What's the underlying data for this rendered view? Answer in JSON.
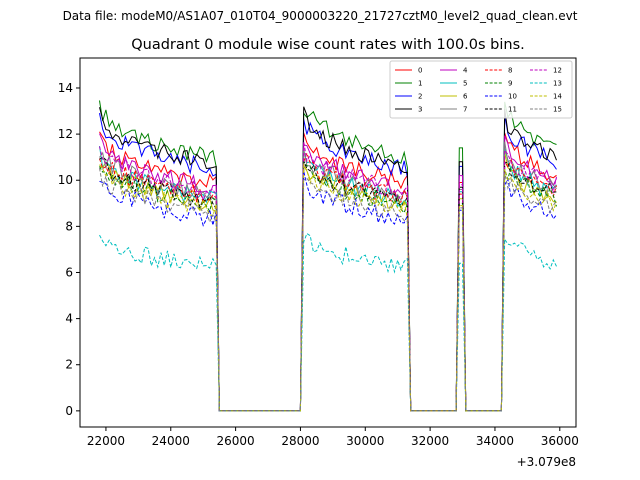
{
  "figure": {
    "suptitle": "Data file: modeM0/AS1A07_010T04_9000003220_21727cztM0_level2_quad_clean.evt"
  },
  "chart_data": {
    "type": "line",
    "title": "Quadrant 0 module wise count rates with 100.0s bins.",
    "xlabel": "",
    "ylabel": "",
    "x_offset_label": "+3.079e8",
    "xlim": [
      21200,
      36500
    ],
    "ylim": [
      -0.7,
      15.3
    ],
    "xticks": [
      22000,
      24000,
      26000,
      28000,
      30000,
      32000,
      34000,
      36000
    ],
    "yticks": [
      0,
      2,
      4,
      6,
      8,
      10,
      12,
      14
    ],
    "grid": false,
    "legend_position": "top-right",
    "legend_columns": 4,
    "segments": [
      {
        "start": 21800,
        "end": 25400,
        "decay_to": 0.82
      },
      {
        "start": 28100,
        "end": 31300,
        "decay_to": 0.82
      },
      {
        "start": 32900,
        "end": 33000,
        "decay_to": 1.0
      },
      {
        "start": 34300,
        "end": 35900,
        "decay_to": 0.85
      }
    ],
    "gap_value": 0,
    "series": [
      {
        "name": "0",
        "color": "#ff0000",
        "dash": "solid",
        "start_rate": 12.0,
        "spike": 9.9
      },
      {
        "name": "1",
        "color": "#008000",
        "dash": "solid",
        "start_rate": 13.3,
        "spike": 11.4
      },
      {
        "name": "2",
        "color": "#0000ff",
        "dash": "solid",
        "start_rate": 12.7,
        "spike": 10.6
      },
      {
        "name": "3",
        "color": "#000000",
        "dash": "solid",
        "start_rate": 12.9,
        "spike": 10.8
      },
      {
        "name": "4",
        "color": "#bf00bf",
        "dash": "solid",
        "start_rate": 11.7,
        "spike": 10.2
      },
      {
        "name": "5",
        "color": "#00bfbf",
        "dash": "solid",
        "start_rate": 11.1,
        "spike": 9.5
      },
      {
        "name": "6",
        "color": "#bfbf00",
        "dash": "solid",
        "start_rate": 10.9,
        "spike": 9.2
      },
      {
        "name": "7",
        "color": "#808080",
        "dash": "solid",
        "start_rate": 11.3,
        "spike": 9.6
      },
      {
        "name": "8",
        "color": "#ff0000",
        "dash": "dashed",
        "start_rate": 11.2,
        "spike": 9.4
      },
      {
        "name": "9",
        "color": "#008000",
        "dash": "dashed",
        "start_rate": 10.8,
        "spike": 9.0
      },
      {
        "name": "10",
        "color": "#0000ff",
        "dash": "dashed",
        "start_rate": 10.1,
        "spike": 8.7
      },
      {
        "name": "11",
        "color": "#000000",
        "dash": "dashed",
        "start_rate": 11.0,
        "spike": 9.7
      },
      {
        "name": "12",
        "color": "#bf00bf",
        "dash": "dashed",
        "start_rate": 11.5,
        "spike": 9.8
      },
      {
        "name": "13",
        "color": "#00bfbf",
        "dash": "dashed",
        "start_rate": 7.6,
        "spike": 6.4
      },
      {
        "name": "14",
        "color": "#bfbf00",
        "dash": "dashed",
        "start_rate": 10.6,
        "spike": 8.9
      },
      {
        "name": "15",
        "color": "#808080",
        "dash": "dashed",
        "start_rate": 10.4,
        "spike": 8.8
      }
    ]
  }
}
